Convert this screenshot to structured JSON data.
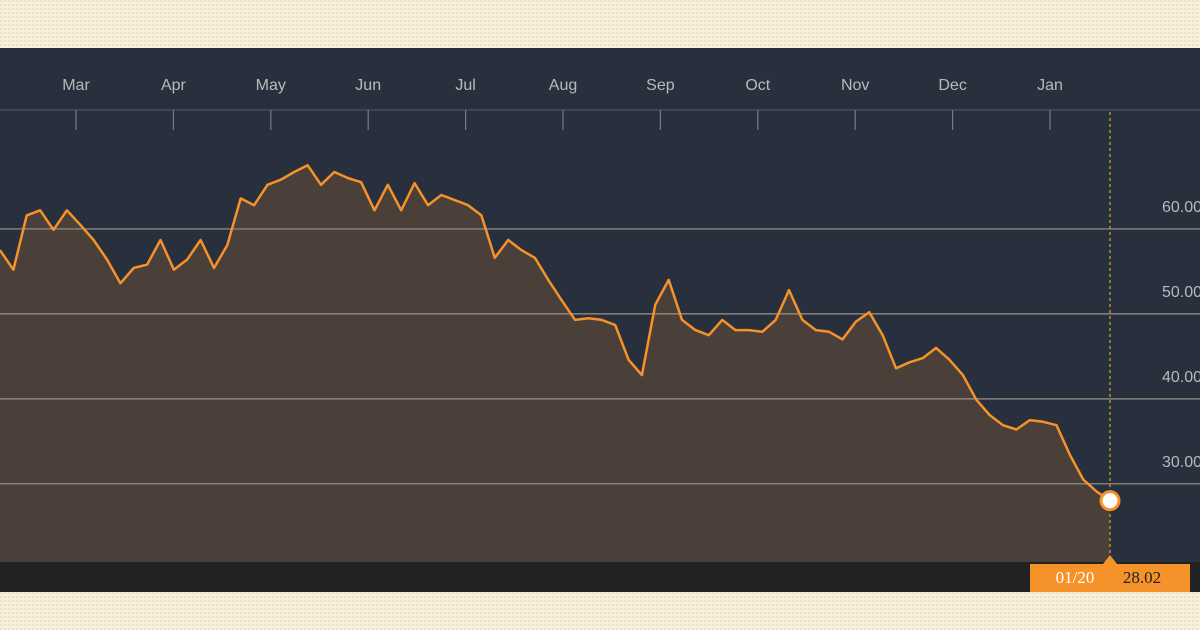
{
  "chart_data": {
    "type": "area",
    "months": [
      "Mar",
      "Apr",
      "May",
      "Jun",
      "Jul",
      "Aug",
      "Sep",
      "Oct",
      "Nov",
      "Dec",
      "Jan"
    ],
    "values": [
      57.5,
      55.2,
      61.6,
      62.2,
      59.9,
      62.2,
      60.5,
      58.7,
      56.4,
      53.6,
      55.4,
      55.8,
      58.7,
      55.2,
      56.4,
      58.7,
      55.4,
      58.1,
      63.6,
      62.8,
      65.2,
      65.8,
      66.7,
      67.5,
      65.2,
      66.7,
      66.0,
      65.5,
      62.2,
      65.2,
      62.2,
      65.4,
      62.8,
      64.0,
      63.4,
      62.8,
      61.6,
      56.6,
      58.7,
      57.5,
      56.6,
      54.0,
      51.6,
      49.3,
      49.5,
      49.3,
      48.7,
      44.6,
      42.8,
      51.1,
      54.0,
      49.3,
      48.1,
      47.5,
      49.3,
      48.1,
      48.1,
      47.9,
      49.3,
      52.8,
      49.3,
      48.1,
      47.9,
      47.0,
      49.1,
      50.2,
      47.5,
      43.6,
      44.3,
      44.8,
      46.0,
      44.6,
      42.8,
      39.9,
      38.1,
      36.9,
      36.4,
      37.5,
      37.3,
      36.9,
      33.4,
      30.5,
      29.1,
      28.02
    ],
    "last_date": "01/20",
    "color": "#f5922a",
    "ylim": [
      20.8,
      74
    ],
    "yticks": [
      {
        "value": 30,
        "label": "30.00"
      },
      {
        "value": 40,
        "label": "40.00"
      },
      {
        "value": 50,
        "label": "50.00"
      },
      {
        "value": 60,
        "label": "60.00"
      }
    ],
    "grid": true
  }
}
